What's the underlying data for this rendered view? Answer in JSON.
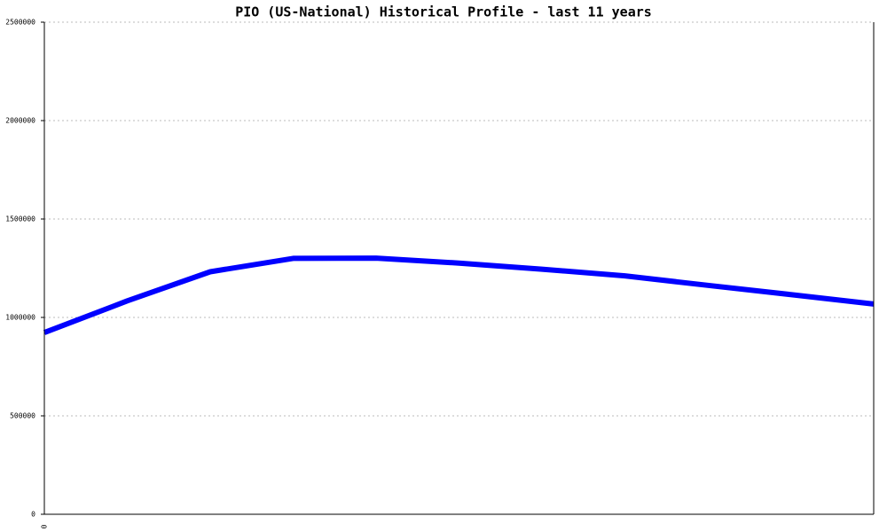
{
  "chart_data": {
    "type": "line",
    "title": "PIO (US-National) Historical Profile - last 11 years",
    "categories": [
      "0",
      null,
      null,
      null,
      null,
      null,
      null,
      null,
      null,
      null,
      null
    ],
    "series": [
      {
        "name": "PIO",
        "color": "#0000ff",
        "values": [
          923000,
          1084000,
          1232000,
          1300000,
          1301000,
          1276000,
          1245000,
          1211000,
          1163000,
          1116000,
          1068000
        ]
      }
    ],
    "ylim": [
      0,
      2500000
    ],
    "yticks": [
      0,
      500000,
      1000000,
      1500000,
      2000000,
      2500000
    ],
    "grid": true
  }
}
